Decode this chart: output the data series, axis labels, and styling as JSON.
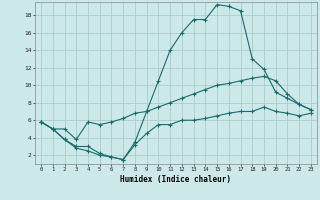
{
  "xlabel": "Humidex (Indice chaleur)",
  "bg_color": "#cce8e8",
  "grid_color": "#aacccc",
  "line_color": "#1a6b6b",
  "xlim_min": -0.5,
  "xlim_max": 23.5,
  "ylim_min": 1.0,
  "ylim_max": 19.5,
  "yticks": [
    2,
    4,
    6,
    8,
    10,
    12,
    14,
    16,
    18
  ],
  "xticks": [
    0,
    1,
    2,
    3,
    4,
    5,
    6,
    7,
    8,
    9,
    10,
    11,
    12,
    13,
    14,
    15,
    16,
    17,
    18,
    19,
    20,
    21,
    22,
    23
  ],
  "line1_x": [
    0,
    1,
    2,
    3,
    4,
    5,
    6,
    7,
    8,
    9,
    10,
    11,
    12,
    13,
    14,
    15,
    16,
    17,
    18,
    19,
    20,
    21,
    22,
    23
  ],
  "line1_y": [
    5.8,
    5.0,
    5.0,
    3.8,
    5.8,
    5.5,
    5.8,
    6.2,
    6.8,
    7.0,
    7.5,
    8.0,
    8.5,
    9.0,
    9.5,
    10.0,
    10.2,
    10.5,
    10.8,
    11.0,
    10.5,
    9.0,
    7.8,
    7.2
  ],
  "line2_x": [
    0,
    1,
    2,
    3,
    4,
    5,
    6,
    7,
    8,
    9,
    10,
    11,
    12,
    13,
    14,
    15,
    16,
    17,
    18,
    19,
    20,
    21,
    22,
    23
  ],
  "line2_y": [
    5.8,
    5.0,
    3.8,
    3.0,
    3.0,
    2.2,
    1.8,
    1.5,
    3.5,
    7.0,
    10.5,
    14.0,
    16.0,
    17.5,
    17.5,
    19.2,
    19.0,
    18.5,
    13.0,
    11.8,
    9.2,
    8.5,
    7.8,
    7.2
  ],
  "line3_x": [
    0,
    1,
    2,
    3,
    4,
    5,
    6,
    7,
    8,
    9,
    10,
    11,
    12,
    13,
    14,
    15,
    16,
    17,
    18,
    19,
    20,
    21,
    22,
    23
  ],
  "line3_y": [
    5.8,
    5.0,
    3.8,
    2.8,
    2.5,
    2.0,
    1.8,
    1.5,
    3.2,
    4.5,
    5.5,
    5.5,
    6.0,
    6.0,
    6.2,
    6.5,
    6.8,
    7.0,
    7.0,
    7.5,
    7.0,
    6.8,
    6.5,
    6.8
  ]
}
